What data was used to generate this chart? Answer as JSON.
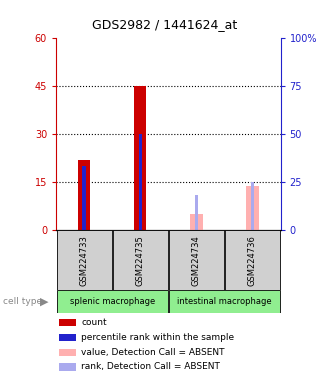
{
  "title": "GDS2982 / 1441624_at",
  "samples": [
    "GSM224733",
    "GSM224735",
    "GSM224734",
    "GSM224736"
  ],
  "count_values": [
    22,
    45,
    0,
    0
  ],
  "rank_values": [
    20,
    30,
    0,
    0
  ],
  "absent_value_values": [
    0,
    0,
    5,
    14
  ],
  "absent_rank_values": [
    0,
    0,
    11,
    15
  ],
  "count_color": "#cc0000",
  "rank_color": "#2222cc",
  "absent_value_color": "#ffb0b0",
  "absent_rank_color": "#aaaaee",
  "ylim_left": [
    0,
    60
  ],
  "ylim_right": [
    0,
    100
  ],
  "yticks_left": [
    0,
    15,
    30,
    45,
    60
  ],
  "yticks_right": [
    0,
    25,
    50,
    75,
    100
  ],
  "ytick_labels_right": [
    "0",
    "25",
    "50",
    "75",
    "100%"
  ],
  "group_bg_color": "#d0d0d0",
  "cell_type_bg_color": "#90ee90",
  "group_def": [
    [
      "splenic macrophage",
      0,
      1
    ],
    [
      "intestinal macrophage",
      2,
      3
    ]
  ],
  "legend_items": [
    {
      "label": "count",
      "color": "#cc0000"
    },
    {
      "label": "percentile rank within the sample",
      "color": "#2222cc"
    },
    {
      "label": "value, Detection Call = ABSENT",
      "color": "#ffb0b0"
    },
    {
      "label": "rank, Detection Call = ABSENT",
      "color": "#aaaaee"
    }
  ]
}
